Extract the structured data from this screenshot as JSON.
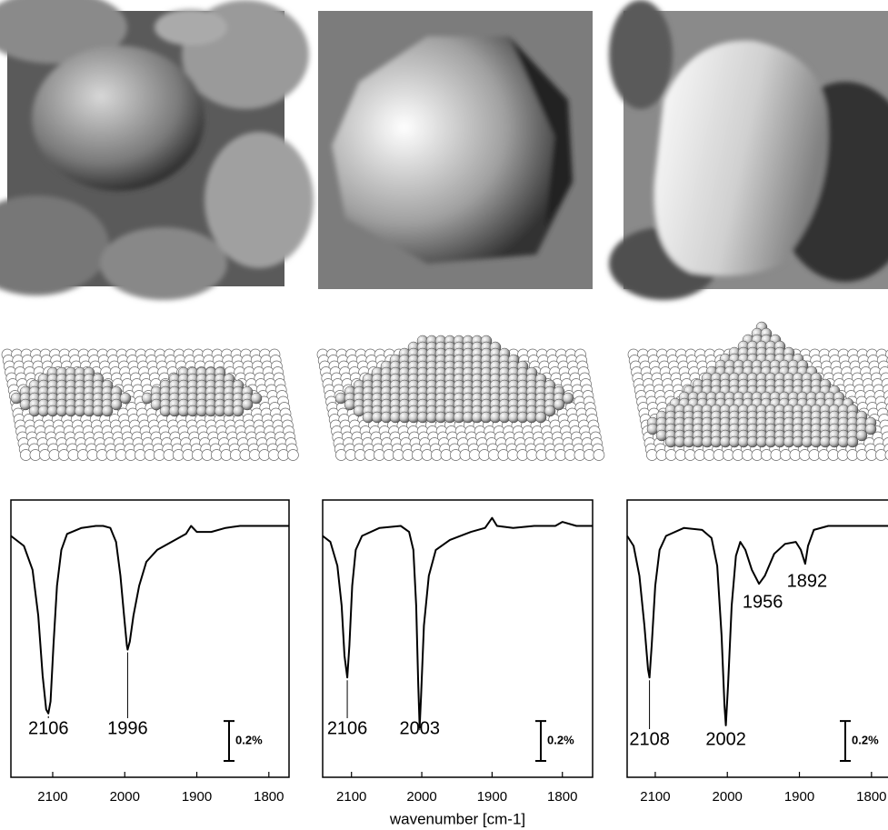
{
  "chart_data": [
    {
      "type": "line",
      "color": "#000000",
      "x": [
        2158,
        2140,
        2128,
        2120,
        2114,
        2109,
        2106,
        2103,
        2099,
        2094,
        2088,
        2080,
        2060,
        2040,
        2030,
        2020,
        2012,
        2006,
        2001,
        1997,
        1996,
        1993,
        1988,
        1980,
        1970,
        1955,
        1930,
        1915,
        1908,
        1900,
        1880,
        1860,
        1840,
        1810,
        1772
      ],
      "values": [
        -0.05,
        -0.1,
        -0.22,
        -0.45,
        -0.75,
        -0.92,
        -0.94,
        -0.88,
        -0.6,
        -0.3,
        -0.12,
        -0.04,
        -0.01,
        0,
        0,
        -0.01,
        -0.08,
        -0.25,
        -0.45,
        -0.6,
        -0.62,
        -0.58,
        -0.45,
        -0.3,
        -0.18,
        -0.12,
        -0.07,
        -0.04,
        0,
        -0.03,
        -0.03,
        -0.01,
        0,
        0,
        0
      ],
      "xlim": [
        2158,
        1772
      ],
      "ylim": [
        -1.26,
        0.13
      ],
      "xticks": [
        2100,
        2000,
        1900,
        1800
      ],
      "annotations": [
        {
          "label": "2106",
          "x": 2106
        },
        {
          "label": "1996",
          "x": 1996
        }
      ],
      "scale_bar": {
        "value": 0.2,
        "label": "0.2%"
      }
    },
    {
      "type": "line",
      "color": "#000000",
      "x": [
        2141,
        2130,
        2120,
        2114,
        2110,
        2106,
        2103,
        2099,
        2094,
        2085,
        2060,
        2030,
        2018,
        2012,
        2008,
        2005,
        2003,
        2001,
        1997,
        1990,
        1980,
        1960,
        1930,
        1910,
        1900,
        1893,
        1870,
        1840,
        1810,
        1800,
        1780,
        1757
      ],
      "values": [
        -0.05,
        -0.08,
        -0.2,
        -0.4,
        -0.65,
        -0.76,
        -0.6,
        -0.3,
        -0.12,
        -0.05,
        -0.01,
        0,
        -0.03,
        -0.12,
        -0.4,
        -0.8,
        -1.01,
        -0.85,
        -0.5,
        -0.25,
        -0.12,
        -0.07,
        -0.03,
        -0.01,
        0.04,
        0,
        -0.01,
        0,
        0,
        0.02,
        0,
        0
      ],
      "xlim": [
        2141,
        1757
      ],
      "ylim": [
        -1.26,
        0.13
      ],
      "xticks": [
        2100,
        2000,
        1900,
        1800
      ],
      "annotations": [
        {
          "label": "2106",
          "x": 2106
        },
        {
          "label": "2003",
          "x": 2003
        }
      ],
      "scale_bar": {
        "value": 0.2,
        "label": "0.2%"
      },
      "xlabel": "wavenumber [cm-1]"
    },
    {
      "type": "line",
      "color": "#000000",
      "x": [
        2139,
        2130,
        2122,
        2115,
        2110,
        2108,
        2105,
        2100,
        2094,
        2085,
        2060,
        2035,
        2022,
        2014,
        2008,
        2004,
        2002,
        1999,
        1994,
        1988,
        1982,
        1975,
        1966,
        1956,
        1948,
        1935,
        1920,
        1905,
        1898,
        1892,
        1888,
        1880,
        1860,
        1820,
        1767
      ],
      "values": [
        -0.05,
        -0.1,
        -0.25,
        -0.5,
        -0.72,
        -0.76,
        -0.6,
        -0.3,
        -0.12,
        -0.05,
        -0.01,
        -0.02,
        -0.06,
        -0.2,
        -0.55,
        -0.9,
        -1.0,
        -0.8,
        -0.4,
        -0.15,
        -0.08,
        -0.12,
        -0.22,
        -0.29,
        -0.25,
        -0.14,
        -0.09,
        -0.08,
        -0.12,
        -0.19,
        -0.1,
        -0.02,
        0,
        0,
        0
      ],
      "xlim": [
        2139,
        1767
      ],
      "ylim": [
        -1.26,
        0.13
      ],
      "xticks": [
        2100,
        2000,
        1900,
        1800
      ],
      "annotations": [
        {
          "label": "2108",
          "x": 2108
        },
        {
          "label": "2002",
          "x": 2002
        },
        {
          "label": "1956",
          "x": 1956
        },
        {
          "label": "1892",
          "x": 1892
        }
      ],
      "scale_bar": {
        "value": 0.2,
        "label": "0.2%"
      }
    }
  ]
}
